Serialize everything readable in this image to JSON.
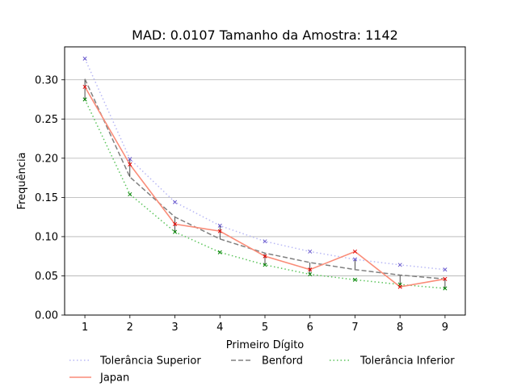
{
  "chart_data": {
    "type": "line",
    "title": "MAD: 0.0107 Tamanho da Amostra: 1142",
    "xlabel": "Primeiro Dígito",
    "ylabel": "Frequência",
    "x": [
      1,
      2,
      3,
      4,
      5,
      6,
      7,
      8,
      9
    ],
    "xlim": [
      0.55,
      9.45
    ],
    "ylim": [
      0,
      0.342
    ],
    "yticks": [
      0.0,
      0.05,
      0.1,
      0.15,
      0.2,
      0.25,
      0.3
    ],
    "ytick_labels": [
      "0.00",
      "0.05",
      "0.10",
      "0.15",
      "0.20",
      "0.25",
      "0.30"
    ],
    "xtick_labels": [
      "1",
      "2",
      "3",
      "4",
      "5",
      "6",
      "7",
      "8",
      "9"
    ],
    "grid": "y",
    "legend_placement": "bottom",
    "series": [
      {
        "name": "Tolerância Superior",
        "style": "dotted",
        "color": "#b8b8f5",
        "marker_color": "#6a5acd",
        "values": [
          0.327,
          0.199,
          0.144,
          0.114,
          0.094,
          0.081,
          0.071,
          0.064,
          0.058
        ]
      },
      {
        "name": "Benford",
        "style": "dashed",
        "color": "#808080",
        "values": [
          0.301,
          0.176,
          0.125,
          0.097,
          0.079,
          0.067,
          0.058,
          0.051,
          0.046
        ]
      },
      {
        "name": "Tolerância Inferior",
        "style": "dotted",
        "color": "#5cc45c",
        "marker_color": "#008000",
        "values": [
          0.275,
          0.154,
          0.106,
          0.08,
          0.064,
          0.052,
          0.045,
          0.039,
          0.034
        ]
      },
      {
        "name": "Japan",
        "style": "solid",
        "color": "#fa8c78",
        "marker_color": "#e00000",
        "values": [
          0.291,
          0.192,
          0.116,
          0.107,
          0.075,
          0.058,
          0.081,
          0.036,
          0.046
        ]
      }
    ]
  }
}
